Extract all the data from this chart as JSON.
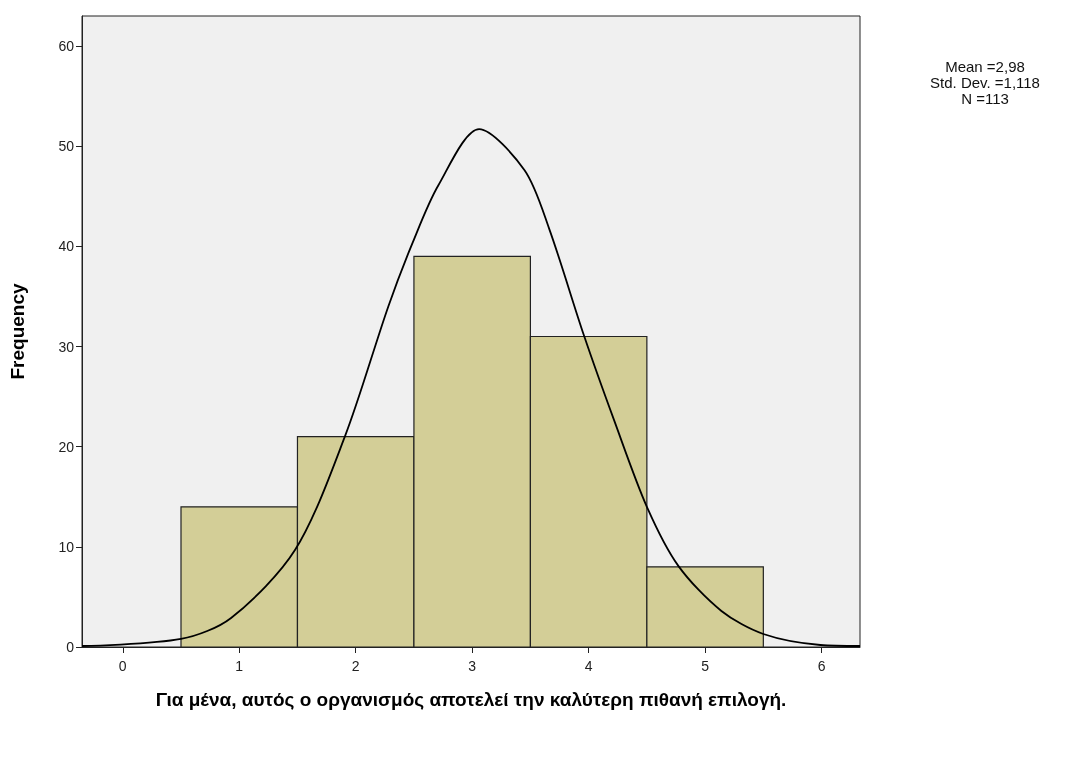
{
  "chart_data": {
    "type": "histogram",
    "xlabel": "Για μένα, αυτός ο οργανισμός αποτελεί την καλύτερη πιθανή επιλογή.",
    "ylabel": "Frequency",
    "bins": [
      0.5,
      1.5,
      2.5,
      3.5,
      4.5,
      5.5
    ],
    "values": [
      14,
      21,
      39,
      31,
      8
    ],
    "color": "#d3ce97",
    "series": [
      {
        "type": "line",
        "color": "#000000",
        "x": [
          -0.35,
          0.5,
          0.93,
          1.48,
          1.91,
          2.28,
          2.49,
          2.71,
          3.06,
          3.45,
          3.66,
          3.96,
          4.22,
          4.5,
          4.77,
          5.14,
          5.5,
          5.99,
          6.33
        ],
        "values": [
          0.1,
          0.8,
          2.9,
          9.7,
          21.1,
          34,
          40.4,
          46.1,
          51.7,
          47.6,
          41.8,
          31.1,
          22.6,
          14,
          8.1,
          3.6,
          1.3,
          0.2,
          0.1
        ]
      }
    ],
    "xlim": [
      -0.35,
      6.33
    ],
    "xticks": [
      0,
      1,
      2,
      3,
      4,
      5,
      6
    ],
    "ylim": [
      0,
      63
    ],
    "yticks": [
      0,
      10,
      20,
      30,
      40,
      50,
      60
    ],
    "grid": false,
    "annotations": [
      "Mean =2,98",
      "Std. Dev. =1,118",
      "N =113"
    ]
  }
}
